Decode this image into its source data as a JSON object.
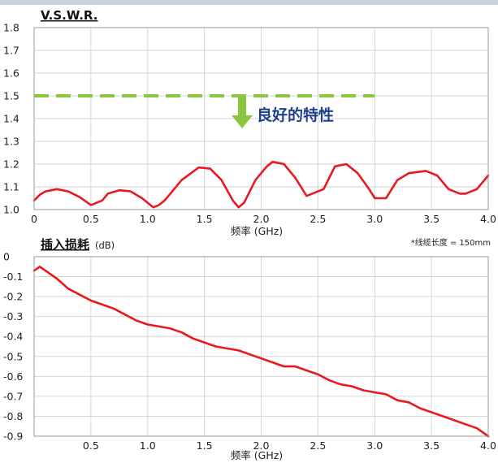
{
  "colors": {
    "curve": "#e8191f",
    "grid": "#d6d6d6",
    "threshold": "#8cc63f",
    "annotation": "#1f3f8f",
    "arrow": "#8cc63f"
  },
  "chart_data": [
    {
      "type": "line",
      "title": "V.S.W.R.",
      "xlabel": "频率 (GHz)",
      "xlim": [
        0,
        4.0
      ],
      "ylim": [
        1.0,
        1.8
      ],
      "grid": true,
      "x_ticks": [
        "0",
        "0.5",
        "1.0",
        "1.5",
        "2.0",
        "2.5",
        "3.0",
        "3.5",
        "4.0"
      ],
      "y_ticks": [
        "1.0",
        "1.1",
        "1.2",
        "1.3",
        "1.4",
        "1.5",
        "1.6",
        "1.7",
        "1.8"
      ],
      "threshold": {
        "y": 1.5,
        "x_end": 3.0
      },
      "annotation": "良好的特性",
      "series": [
        {
          "x": [
            0,
            0.05,
            0.1,
            0.2,
            0.3,
            0.4,
            0.5,
            0.6,
            0.65,
            0.75,
            0.85,
            0.95,
            1.05,
            1.1,
            1.15,
            1.3,
            1.45,
            1.55,
            1.65,
            1.75,
            1.8,
            1.85,
            1.95,
            2.05,
            2.1,
            2.2,
            2.3,
            2.4,
            2.55,
            2.65,
            2.75,
            2.85,
            2.95,
            3.0,
            3.1,
            3.2,
            3.3,
            3.45,
            3.55,
            3.65,
            3.75,
            3.8,
            3.9,
            4.0
          ],
          "y": [
            1.04,
            1.065,
            1.08,
            1.09,
            1.08,
            1.055,
            1.02,
            1.04,
            1.07,
            1.085,
            1.08,
            1.05,
            1.01,
            1.02,
            1.04,
            1.13,
            1.185,
            1.18,
            1.13,
            1.04,
            1.01,
            1.03,
            1.13,
            1.19,
            1.21,
            1.2,
            1.14,
            1.06,
            1.09,
            1.19,
            1.2,
            1.16,
            1.09,
            1.05,
            1.05,
            1.13,
            1.16,
            1.17,
            1.15,
            1.09,
            1.07,
            1.07,
            1.09,
            1.15
          ]
        }
      ]
    },
    {
      "type": "line",
      "title": "插入损耗",
      "unit": "(dB)",
      "note": "*线缆长度 = 150mm",
      "xlabel": "频率 (GHz)",
      "xlim": [
        0,
        4.0
      ],
      "ylim": [
        -0.9,
        0
      ],
      "grid": true,
      "x_ticks": [
        "0.5",
        "1.0",
        "1.5",
        "2.0",
        "2.5",
        "3.0",
        "3.5",
        "4.0"
      ],
      "y_ticks": [
        "0",
        "-0.1",
        "-0.2",
        "-0.3",
        "-0.4",
        "-0.5",
        "-0.6",
        "-0.7",
        "-0.8",
        "-0.9"
      ],
      "series": [
        {
          "x": [
            0,
            0.05,
            0.1,
            0.2,
            0.3,
            0.4,
            0.5,
            0.6,
            0.7,
            0.8,
            0.9,
            1.0,
            1.1,
            1.2,
            1.3,
            1.4,
            1.5,
            1.6,
            1.7,
            1.8,
            1.9,
            2.0,
            2.1,
            2.2,
            2.3,
            2.4,
            2.5,
            2.6,
            2.7,
            2.8,
            2.9,
            3.0,
            3.1,
            3.2,
            3.3,
            3.4,
            3.5,
            3.6,
            3.7,
            3.8,
            3.9,
            4.0
          ],
          "y": [
            -0.07,
            -0.05,
            -0.07,
            -0.11,
            -0.16,
            -0.19,
            -0.22,
            -0.24,
            -0.26,
            -0.29,
            -0.32,
            -0.34,
            -0.35,
            -0.36,
            -0.38,
            -0.41,
            -0.43,
            -0.45,
            -0.46,
            -0.47,
            -0.49,
            -0.51,
            -0.53,
            -0.55,
            -0.55,
            -0.57,
            -0.59,
            -0.62,
            -0.64,
            -0.65,
            -0.67,
            -0.68,
            -0.69,
            -0.72,
            -0.73,
            -0.76,
            -0.78,
            -0.8,
            -0.82,
            -0.84,
            -0.86,
            -0.9
          ]
        }
      ]
    }
  ]
}
